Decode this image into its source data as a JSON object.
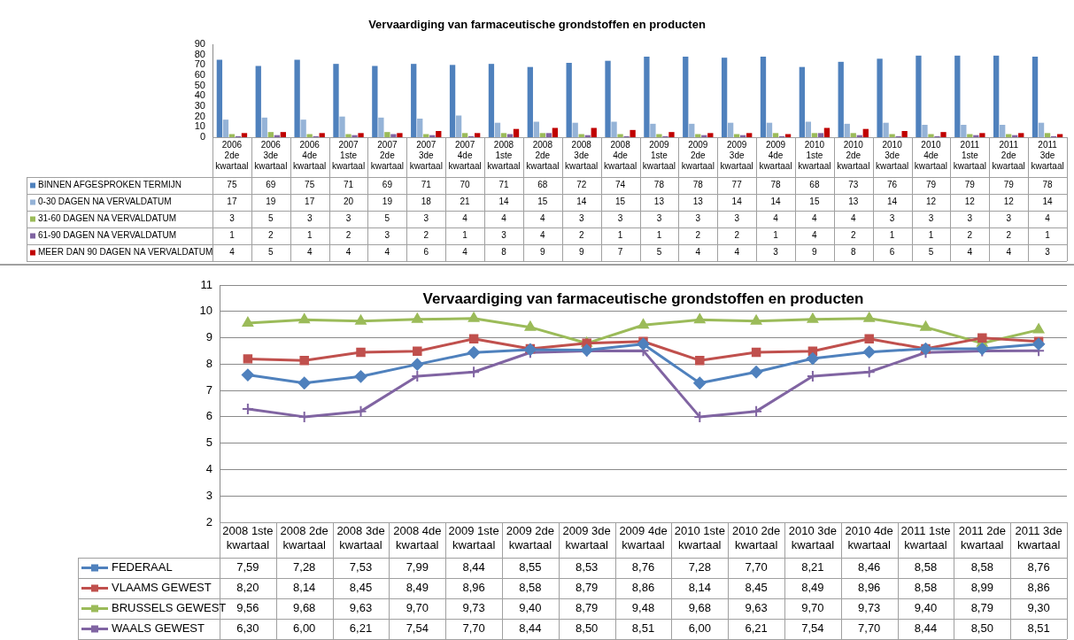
{
  "chart_data": [
    {
      "type": "bar",
      "title": "Vervaardiging van farmaceutische grondstoffen en producten",
      "categories": [
        "2006 2de kwartaal",
        "2006 3de kwartaal",
        "2006 4de kwartaal",
        "2007 1ste kwartaal",
        "2007 2de kwartaal",
        "2007 3de kwartaal",
        "2007 4de kwartaal",
        "2008 1ste kwartaal",
        "2008 2de kwartaal",
        "2008 3de kwartaal",
        "2008 4de kwartaal",
        "2009 1ste kwartaal",
        "2009 2de kwartaal",
        "2009 3de kwartaal",
        "2009 4de kwartaal",
        "2010 1ste kwartaal",
        "2010 2de kwartaal",
        "2010 3de kwartaal",
        "2010 4de kwartaal",
        "2011 1ste kwartaal",
        "2011 2de kwartaal",
        "2011 3de kwartaal"
      ],
      "series": [
        {
          "name": "BINNEN AFGESPROKEN TERMIJN",
          "color": "#4f81bd",
          "values": [
            75,
            69,
            75,
            71,
            69,
            71,
            70,
            71,
            68,
            72,
            74,
            78,
            78,
            77,
            78,
            68,
            73,
            76,
            79,
            79,
            79,
            78
          ]
        },
        {
          "name": "0-30 DAGEN NA VERVALDATUM",
          "color": "#95b3d7",
          "values": [
            17,
            19,
            17,
            20,
            19,
            18,
            21,
            14,
            15,
            14,
            15,
            13,
            13,
            14,
            14,
            15,
            13,
            14,
            12,
            12,
            12,
            14
          ]
        },
        {
          "name": "31-60 DAGEN NA VERVALDATUM",
          "color": "#9bbb59",
          "values": [
            3,
            5,
            3,
            3,
            5,
            3,
            4,
            4,
            4,
            3,
            3,
            3,
            3,
            3,
            4,
            4,
            4,
            3,
            3,
            3,
            3,
            4
          ]
        },
        {
          "name": "61-90 DAGEN NA VERVALDATUM",
          "color": "#8064a2",
          "values": [
            1,
            2,
            1,
            2,
            3,
            2,
            1,
            3,
            4,
            2,
            1,
            1,
            2,
            2,
            1,
            4,
            2,
            1,
            1,
            2,
            2,
            1
          ]
        },
        {
          "name": "MEER DAN 90 DAGEN NA VERVALDATUM",
          "color": "#c00000",
          "values": [
            4,
            5,
            4,
            4,
            4,
            6,
            4,
            8,
            9,
            9,
            7,
            5,
            4,
            4,
            3,
            9,
            8,
            6,
            5,
            4,
            4,
            3
          ]
        }
      ],
      "ylim": [
        0,
        90
      ],
      "yticks": [
        0,
        10,
        20,
        30,
        40,
        50,
        60,
        70,
        80,
        90
      ],
      "grid": false,
      "legend": "bottom",
      "data_labels": true
    },
    {
      "type": "line",
      "title": "Vervaardiging van farmaceutische grondstoffen en producten",
      "categories": [
        "2008 1ste kwartaal",
        "2008 2de kwartaal",
        "2008 3de kwartaal",
        "2008 4de kwartaal",
        "2009 1ste kwartaal",
        "2009 2de kwartaal",
        "2009 3de kwartaal",
        "2009 4de kwartaal",
        "2010 1ste kwartaal",
        "2010 2de kwartaal",
        "2010 3de kwartaal",
        "2010 4de kwartaal",
        "2011 1ste kwartaal",
        "2011 2de kwartaal",
        "2011 3de kwartaal"
      ],
      "series": [
        {
          "name": "FEDERAAL",
          "color": "#4f81bd",
          "marker": "diamond",
          "values": [
            7.59,
            7.28,
            7.53,
            7.99,
            8.44,
            8.55,
            8.53,
            8.76,
            7.28,
            7.7,
            8.21,
            8.46,
            8.58,
            8.58,
            8.76
          ],
          "value_labels": [
            "7,59",
            "7,28",
            "7,53",
            "7,99",
            "8,44",
            "8,55",
            "8,53",
            "8,76",
            "7,28",
            "7,70",
            "8,21",
            "8,46",
            "8,58",
            "8,58",
            "8,76"
          ]
        },
        {
          "name": "VLAAMS GEWEST",
          "color": "#c0504d",
          "marker": "square",
          "values": [
            8.2,
            8.14,
            8.45,
            8.49,
            8.96,
            8.58,
            8.79,
            8.86,
            8.14,
            8.45,
            8.49,
            8.96,
            8.58,
            8.99,
            8.86
          ],
          "value_labels": [
            "8,20",
            "8,14",
            "8,45",
            "8,49",
            "8,96",
            "8,58",
            "8,79",
            "8,86",
            "8,14",
            "8,45",
            "8,49",
            "8,96",
            "8,58",
            "8,99",
            "8,86"
          ]
        },
        {
          "name": "BRUSSELS GEWEST",
          "color": "#9bbb59",
          "marker": "triangle",
          "values": [
            9.56,
            9.68,
            9.63,
            9.7,
            9.73,
            9.4,
            8.79,
            9.48,
            9.68,
            9.63,
            9.7,
            9.73,
            9.4,
            8.79,
            9.3
          ],
          "value_labels": [
            "9,56",
            "9,68",
            "9,63",
            "9,70",
            "9,73",
            "9,40",
            "8,79",
            "9,48",
            "9,68",
            "9,63",
            "9,70",
            "9,73",
            "9,40",
            "8,79",
            "9,30"
          ]
        },
        {
          "name": "WAALS GEWEST",
          "color": "#8064a2",
          "marker": "cross",
          "values": [
            6.3,
            6.0,
            6.21,
            7.54,
            7.7,
            8.44,
            8.5,
            8.51,
            6.0,
            6.21,
            7.54,
            7.7,
            8.44,
            8.5,
            8.51
          ],
          "value_labels": [
            "6,30",
            "6,00",
            "6,21",
            "7,54",
            "7,70",
            "8,44",
            "8,50",
            "8,51",
            "6,00",
            "6,21",
            "7,54",
            "7,70",
            "8,44",
            "8,50",
            "8,51"
          ]
        }
      ],
      "ylim": [
        2,
        11
      ],
      "yticks": [
        2,
        3,
        4,
        5,
        6,
        7,
        8,
        9,
        10,
        11
      ],
      "grid": "y",
      "legend": "bottom"
    }
  ]
}
